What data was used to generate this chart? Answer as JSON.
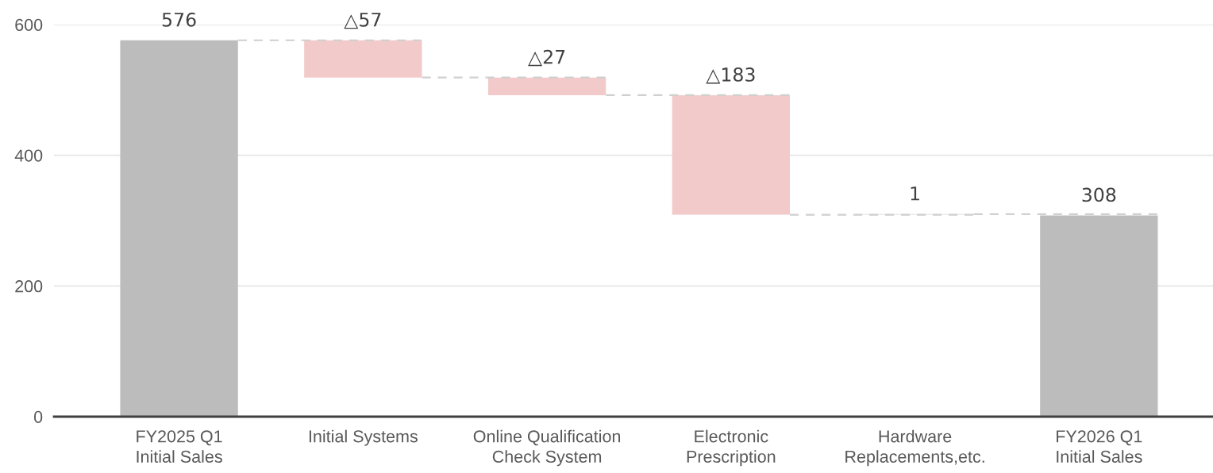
{
  "chart_data": {
    "type": "bar",
    "categories": [
      "FY2025 Q1\nInitial Sales",
      "Initial Systems",
      "Online Qualification\nCheck System",
      "Electronic\nPrescription",
      "Hardware\nReplacements,etc.",
      "FY2026 Q1\nInitial Sales"
    ],
    "values": [
      576,
      -57,
      -27,
      -183,
      1,
      308
    ],
    "base": [
      0,
      576,
      519,
      492,
      309,
      0
    ],
    "colors": [
      "#bcbcbc",
      "#f2caca",
      "#f2caca",
      "#f2caca",
      "#d9d9d9",
      "#bcbcbc"
    ],
    "value_labels": [
      "576",
      "△57",
      "△27",
      "△183",
      "1",
      "308"
    ],
    "ylim": [
      0,
      600
    ],
    "yticks": [
      0,
      200,
      400,
      600
    ],
    "grid": "y"
  }
}
